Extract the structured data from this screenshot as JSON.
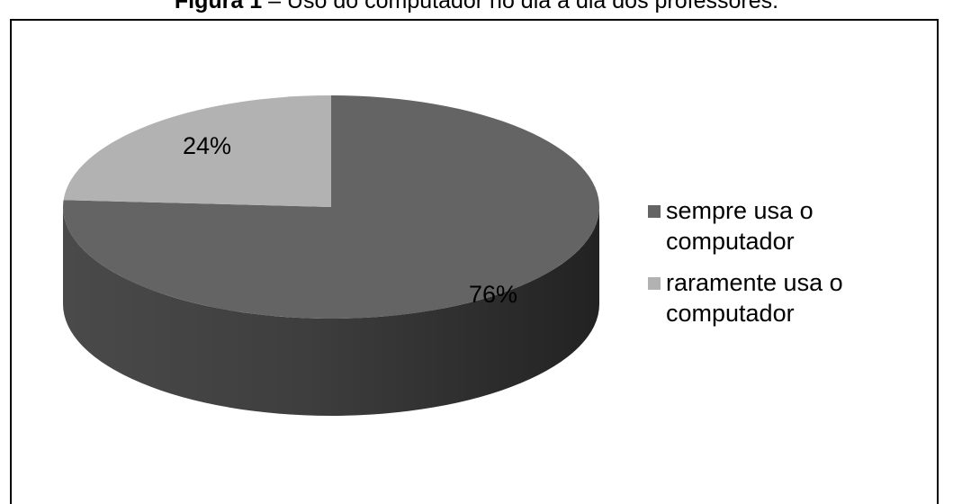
{
  "caption": {
    "label": "Figura 1",
    "text": " – Uso do computador no dia a dia dos professores."
  },
  "chart_data": {
    "type": "pie",
    "style": "3d",
    "title": "",
    "series": [
      {
        "name": "",
        "values": [
          76,
          24
        ],
        "categories": [
          "sempre usa o computador",
          "raramente usa o computador"
        ]
      }
    ],
    "slices": [
      {
        "label": "sempre usa o computador",
        "value": 76,
        "data_label": "76%",
        "color": "#646464"
      },
      {
        "label": "raramente usa o computador",
        "value": 24,
        "data_label": "24%",
        "color": "#b2b2b2"
      }
    ],
    "legend": "right"
  },
  "legend": {
    "items": [
      {
        "label": "sempre usa o computador",
        "color": "#646464"
      },
      {
        "label": "raramente usa o computador",
        "color": "#b2b2b2"
      }
    ]
  }
}
